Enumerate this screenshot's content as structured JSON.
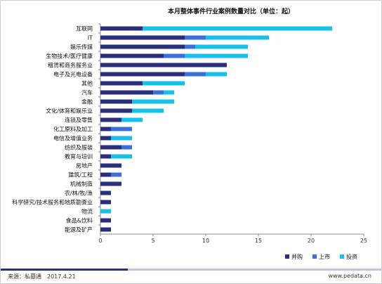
{
  "chart_data": {
    "type": "bar",
    "orientation": "horizontal",
    "stacked": true,
    "title": "本月整体事件行业案例数量对比（单位：起）",
    "categories": [
      "互联网",
      "IT",
      "娱乐传媒",
      "生物技术/医疗健康",
      "租赁和商务服务业",
      "电子及光电设备",
      "其他",
      "汽车",
      "金融",
      "文化/体育和娱乐业",
      "连锁及零售",
      "化工原料及加工",
      "电信及增值业务",
      "纺织及服装",
      "教育与培训",
      "房地产",
      "建筑/工程",
      "机械制造",
      "农/林/牧/渔",
      "科学研究/技术服务和地质勘查业",
      "物流",
      "食品&饮料",
      "能源及矿产"
    ],
    "series": [
      {
        "name": "并购",
        "color": "#2b2f7a",
        "values": [
          4,
          8,
          8,
          6,
          12,
          8,
          4,
          5,
          3,
          3,
          2,
          1,
          1,
          2,
          1,
          2,
          1,
          2,
          1,
          1,
          0,
          1,
          1
        ]
      },
      {
        "name": "上市",
        "color": "#3d6fd8",
        "values": [
          0,
          2,
          1,
          2,
          0,
          2,
          0,
          1,
          0,
          0,
          0,
          2,
          0,
          1,
          0,
          0,
          1,
          0,
          0,
          0,
          0,
          0,
          0
        ]
      },
      {
        "name": "投资",
        "color": "#17c0e6",
        "values": [
          18,
          6,
          5,
          6,
          0,
          2,
          4,
          1,
          4,
          3,
          2,
          0,
          2,
          0,
          2,
          0,
          0,
          0,
          0,
          0,
          1,
          0,
          0
        ]
      }
    ],
    "xlim": [
      0,
      25
    ],
    "xticks": [
      "0",
      "5",
      "10",
      "15",
      "20",
      "25"
    ],
    "grid": false,
    "legend_position": "bottom-right"
  },
  "footer": {
    "source": "来源：私募通　2017.4.21",
    "site": "www.pedata.cn"
  }
}
